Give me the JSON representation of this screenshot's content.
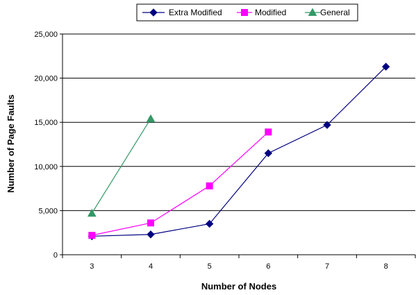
{
  "chart_data": {
    "type": "line",
    "title": "",
    "xlabel": "Number of Nodes",
    "ylabel": "Number of Page Faults",
    "categories": [
      "3",
      "4",
      "5",
      "6",
      "7",
      "8"
    ],
    "ylim": [
      0,
      25000
    ],
    "yticks": [
      0,
      5000,
      10000,
      15000,
      20000,
      25000
    ],
    "ytick_labels": [
      "0",
      "5,000",
      "10,000",
      "15,000",
      "20,000",
      "25,000"
    ],
    "grid": "horizontal",
    "legend_position": "top",
    "series": [
      {
        "name": "Extra Modified",
        "color": "#000080",
        "marker": "diamond",
        "values": [
          2100,
          2300,
          3500,
          11500,
          14700,
          21300
        ]
      },
      {
        "name": "Modified",
        "color": "#ff00ff",
        "marker": "square",
        "values": [
          2200,
          3600,
          7800,
          13900,
          null,
          null
        ]
      },
      {
        "name": "General",
        "color": "#339966",
        "marker": "triangle",
        "values": [
          4700,
          15400,
          null,
          null,
          null,
          null
        ]
      }
    ]
  }
}
